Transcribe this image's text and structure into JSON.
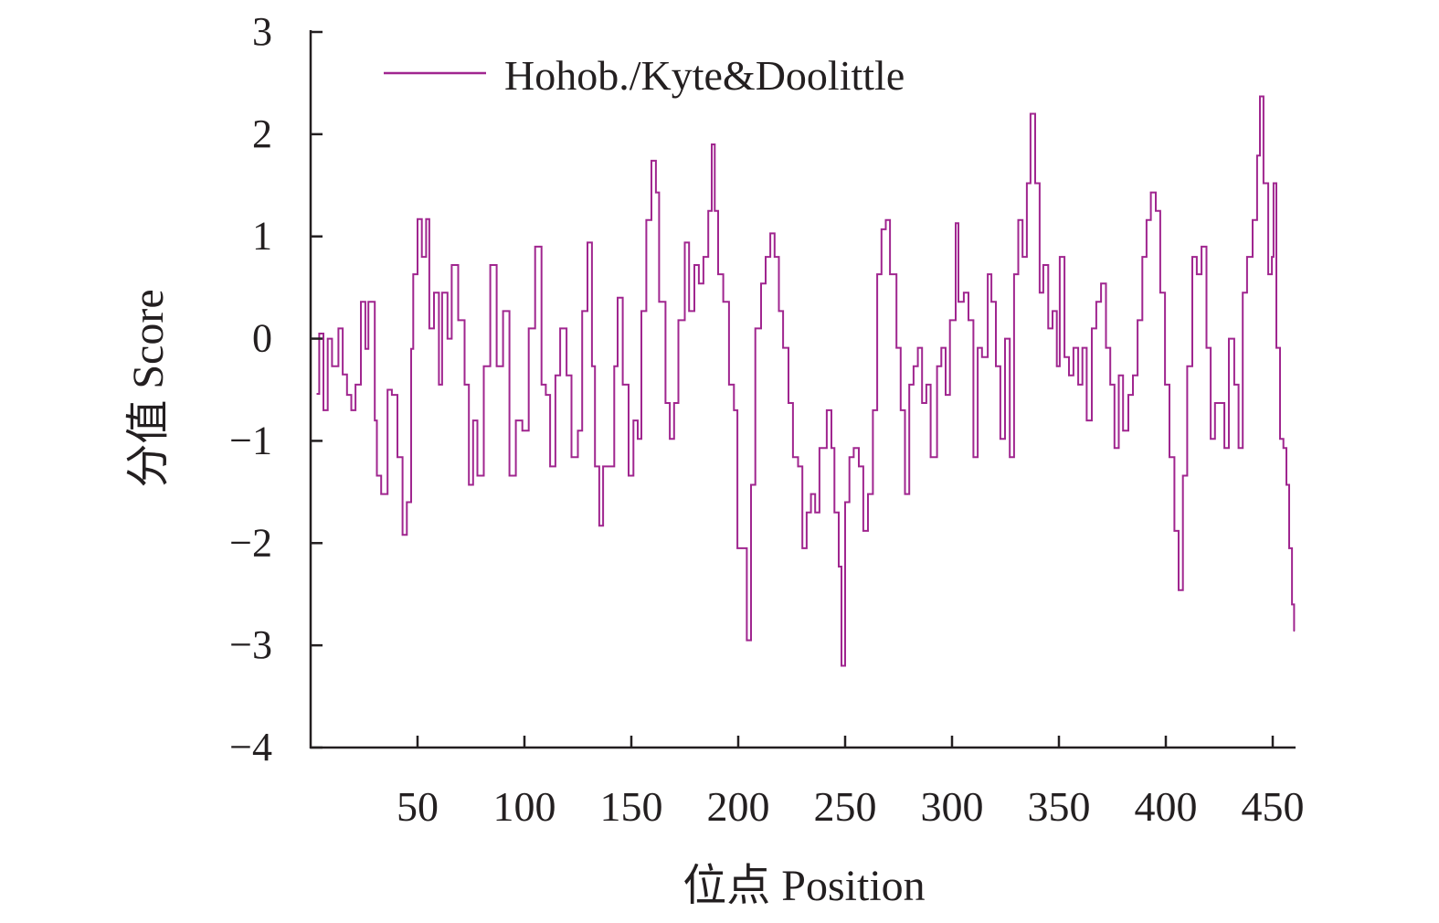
{
  "chart_data": {
    "type": "line",
    "title": "",
    "xlabel": "位点 Position",
    "ylabel": "分值 Score",
    "xlim": [
      0,
      462
    ],
    "ylim": [
      -4,
      3
    ],
    "xticks": [
      50,
      100,
      150,
      200,
      250,
      300,
      350,
      400,
      450
    ],
    "xtick_labels": [
      "50",
      "100",
      "150",
      "200",
      "250",
      "300",
      "350",
      "400",
      "450"
    ],
    "yticks": [
      3,
      2,
      1,
      0,
      -1,
      -2,
      -3,
      -4
    ],
    "ytick_labels": [
      "3",
      "2",
      "1",
      "0",
      "−1",
      "−2",
      "−3",
      "−4"
    ],
    "grid": false,
    "legend": {
      "placement": "top-left",
      "entries": [
        "Hohob./Kyte&Doolittle"
      ]
    },
    "series": [
      {
        "name": "Hohob./Kyte&Doolittle",
        "color": "#a0268f",
        "x": [
          3,
          4,
          6,
          8,
          10,
          13,
          15,
          17,
          19,
          21,
          23.5,
          25.6,
          27,
          30,
          31,
          33,
          36,
          38,
          40.6,
          43,
          45,
          47,
          48,
          50,
          52,
          54,
          55.5,
          57.7,
          60,
          61.5,
          64,
          66,
          69,
          72,
          74,
          76,
          78,
          81,
          84,
          87,
          90,
          93,
          96,
          99,
          102,
          105,
          108,
          110,
          112,
          114.5,
          116.7,
          119.7,
          122,
          125,
          127,
          129.5,
          131.6,
          133,
          135,
          136.8,
          139,
          142,
          143.6,
          146,
          148.7,
          151,
          153,
          154.7,
          157,
          159.4,
          161.5,
          163,
          166,
          168,
          170,
          172,
          175,
          177,
          179.5,
          181.6,
          183.7,
          186,
          187.6,
          189,
          190.6,
          193,
          195.7,
          198,
          199.6,
          201.7,
          204,
          206,
          208,
          210.7,
          212.8,
          215,
          217,
          219,
          221,
          223.5,
          225.6,
          228,
          230,
          232,
          234,
          236,
          238,
          241.4,
          243.6,
          245,
          247,
          248.3,
          250,
          252,
          254,
          256.4,
          258.5,
          260.7,
          263,
          265,
          267,
          269,
          271,
          274,
          276,
          278,
          280,
          282,
          284,
          286,
          288,
          290,
          293,
          295,
          297,
          299,
          301.7,
          303,
          305.5,
          307.7,
          310,
          312,
          314,
          316.7,
          318.4,
          320.5,
          322.6,
          324.8,
          327,
          329,
          331,
          333,
          335,
          336.7,
          338.9,
          341,
          342.7,
          345,
          347,
          349,
          350.4,
          352.6,
          354.7,
          356.8,
          359,
          361,
          363,
          365.4,
          367.5,
          369.7,
          372,
          374,
          376,
          378,
          380,
          382.5,
          384.6,
          386.8,
          389,
          391,
          393,
          395.3,
          397.4,
          399.6,
          401.7,
          404,
          406,
          408,
          410,
          412.4,
          414.5,
          416.7,
          419,
          421,
          423,
          425,
          427.4,
          429.5,
          432,
          434,
          436,
          438,
          440.6,
          442.7,
          444,
          445.7,
          447.9,
          449.6,
          450.4,
          451.7,
          453.4,
          455,
          456.4,
          457.7,
          459,
          460
        ],
        "y": [
          -0.54,
          0.05,
          -0.7,
          0,
          -0.27,
          0.1,
          -0.35,
          -0.55,
          -0.7,
          -0.45,
          0.36,
          -0.1,
          0.36,
          -0.8,
          -1.34,
          -1.52,
          -0.5,
          -0.55,
          -1.16,
          -1.92,
          -1.6,
          -0.1,
          0.63,
          1.17,
          0.8,
          1.17,
          0.1,
          0.45,
          -0.45,
          0.45,
          0,
          0.72,
          0.18,
          -0.45,
          -1.43,
          -0.8,
          -1.34,
          -0.27,
          0.72,
          -0.27,
          0.27,
          -1.34,
          -0.8,
          -0.9,
          0.1,
          0.9,
          -0.45,
          -0.55,
          -1.25,
          -0.36,
          0.1,
          -0.36,
          -1.16,
          -0.9,
          0.27,
          0.94,
          -0.27,
          -1.25,
          -1.83,
          -1.25,
          -1.25,
          -0.27,
          0.4,
          -0.45,
          -1.34,
          -0.8,
          -0.98,
          0.27,
          1.16,
          1.74,
          1.43,
          0.36,
          -0.63,
          -0.98,
          -0.63,
          0.18,
          0.94,
          0.27,
          0.72,
          0.54,
          0.8,
          1.25,
          1.9,
          1.25,
          0.63,
          0.36,
          -0.45,
          -0.7,
          -2.05,
          -2.05,
          -2.95,
          -1.43,
          0.1,
          0.54,
          0.8,
          1.03,
          0.8,
          0.27,
          -0.09,
          -0.63,
          -1.16,
          -1.25,
          -2.05,
          -1.7,
          -1.52,
          -1.7,
          -1.07,
          -0.7,
          -1.07,
          -1.7,
          -2.23,
          -3.2,
          -1.6,
          -1.16,
          -1.07,
          -1.25,
          -1.88,
          -1.52,
          -0.7,
          0.63,
          1.07,
          1.16,
          0.63,
          -0.09,
          -0.7,
          -1.52,
          -0.45,
          -0.27,
          -0.09,
          -0.63,
          -0.45,
          -1.16,
          -0.27,
          -0.09,
          -0.55,
          0.18,
          1.13,
          0.36,
          0.45,
          0.18,
          -1.16,
          -0.09,
          -0.18,
          0.63,
          0.36,
          -0.27,
          -0.98,
          0,
          -1.16,
          0.63,
          1.16,
          0.8,
          1.52,
          2.2,
          1.52,
          0.45,
          0.72,
          0.1,
          0.27,
          -0.27,
          0.8,
          -0.18,
          -0.36,
          -0.09,
          -0.45,
          -0.09,
          -0.8,
          0.1,
          0.36,
          0.54,
          -0.09,
          -0.45,
          -1.07,
          -0.36,
          -0.9,
          -0.55,
          -0.36,
          0.18,
          0.8,
          1.16,
          1.43,
          1.25,
          0.45,
          -0.45,
          -1.16,
          -1.88,
          -2.46,
          -1.34,
          -0.27,
          0.8,
          0.63,
          0.9,
          -0.09,
          -0.98,
          -0.63,
          -0.63,
          -1.07,
          0,
          -0.45,
          -1.07,
          0.45,
          0.8,
          1.16,
          1.79,
          2.37,
          1.52,
          0.63,
          0.8,
          1.52,
          -0.09,
          -0.98,
          -1.07,
          -1.43,
          -2.05,
          -2.6,
          -2.86
        ]
      }
    ]
  }
}
